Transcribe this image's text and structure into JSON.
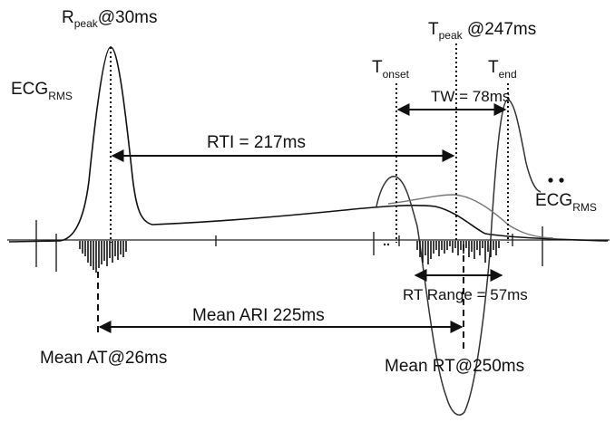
{
  "labels": {
    "r_peak": {
      "main": "R",
      "sub": "peak",
      "rest": "@30ms"
    },
    "t_peak": {
      "main": "T",
      "sub": "peak",
      "rest": " @247ms"
    },
    "t_onset": {
      "main": "T",
      "sub": "onset"
    },
    "t_end": {
      "main": "T",
      "sub": "end"
    },
    "ecg_rms": {
      "main": "ECG",
      "sub": "RMS"
    },
    "ecg_rms_ddot": {
      "main": "ECG",
      "sub": "RMS"
    },
    "tw": "TW = 78ms",
    "rti": "RTI  = 217ms",
    "rt_range": "RT Range = 57ms",
    "mean_ari": "Mean ARI  225ms",
    "mean_at": "Mean AT@26ms",
    "mean_rt": "Mean RT@250ms"
  },
  "colors": {
    "ink": "#111111",
    "secondary_trace": "#555555",
    "t_wave": "#777777"
  }
}
